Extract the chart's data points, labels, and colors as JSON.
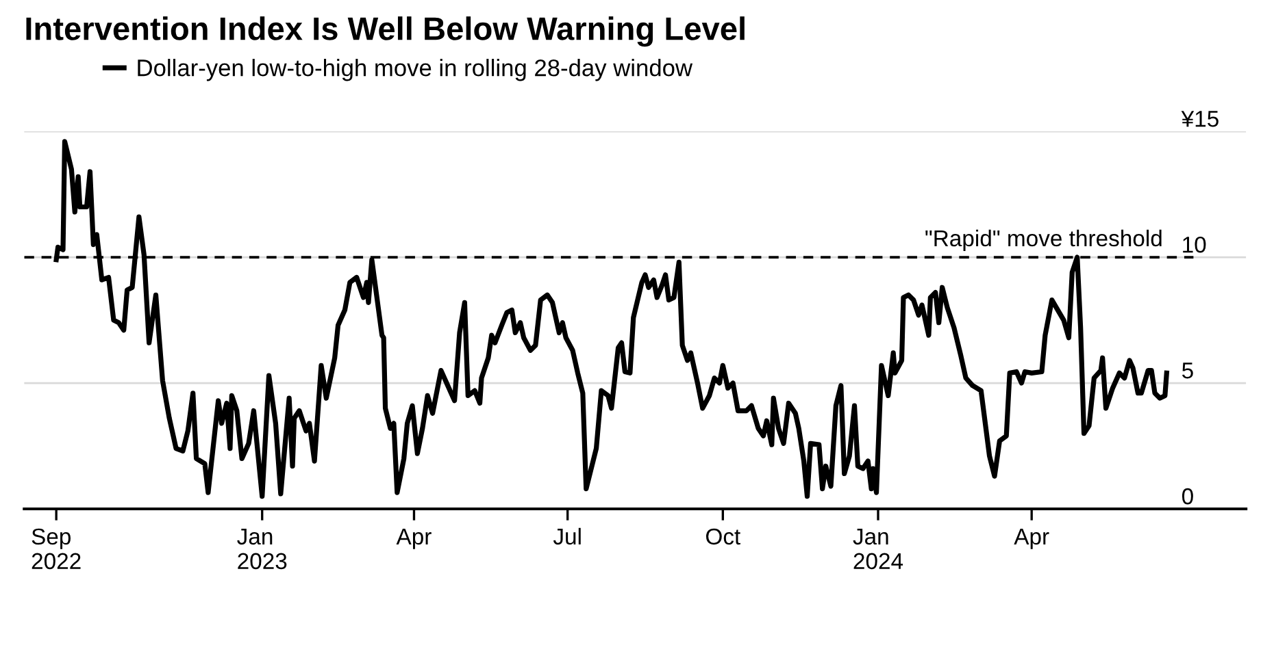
{
  "chart_data": {
    "type": "line",
    "title": "Intervention Index Is Well Below Warning Level",
    "series": [
      {
        "name": "Dollar-yen low-to-high move in rolling 28-day window",
        "color": "#000000",
        "x": [
          "2022-09-01",
          "2022-09-02",
          "2022-09-05",
          "2022-09-06",
          "2022-09-10",
          "2022-09-12",
          "2022-09-14",
          "2022-09-15",
          "2022-09-19",
          "2022-09-21",
          "2022-09-23",
          "2022-09-25",
          "2022-09-28",
          "2022-10-02",
          "2022-10-05",
          "2022-10-08",
          "2022-10-11",
          "2022-10-13",
          "2022-10-16",
          "2022-10-20",
          "2022-10-23",
          "2022-10-26",
          "2022-10-30",
          "2022-11-03",
          "2022-11-07",
          "2022-11-11",
          "2022-11-15",
          "2022-11-18",
          "2022-11-21",
          "2022-11-23",
          "2022-11-28",
          "2022-11-30",
          "2022-12-06",
          "2022-12-08",
          "2022-12-11",
          "2022-12-13",
          "2022-12-14",
          "2022-12-17",
          "2022-12-20",
          "2022-12-24",
          "2022-12-27",
          "2023-01-01",
          "2023-01-05",
          "2023-01-09",
          "2023-01-12",
          "2023-01-17",
          "2023-01-19",
          "2023-01-20",
          "2023-01-23",
          "2023-01-27",
          "2023-01-29",
          "2023-02-01",
          "2023-02-05",
          "2023-02-08",
          "2023-02-13",
          "2023-02-15",
          "2023-02-19",
          "2023-02-22",
          "2023-02-26",
          "2023-03-02",
          "2023-03-04",
          "2023-03-05",
          "2023-03-07",
          "2023-03-13",
          "2023-03-14",
          "2023-03-15",
          "2023-03-18",
          "2023-03-20",
          "2023-03-22",
          "2023-03-26",
          "2023-03-28",
          "2023-03-31",
          "2023-04-03",
          "2023-04-06",
          "2023-04-09",
          "2023-04-12",
          "2023-04-17",
          "2023-04-21",
          "2023-04-25",
          "2023-04-28",
          "2023-05-01",
          "2023-05-03",
          "2023-05-07",
          "2023-05-10",
          "2023-05-11",
          "2023-05-15",
          "2023-05-17",
          "2023-05-19",
          "2023-05-23",
          "2023-05-26",
          "2023-05-29",
          "2023-05-31",
          "2023-06-03",
          "2023-06-05",
          "2023-06-09",
          "2023-06-12",
          "2023-06-15",
          "2023-06-19",
          "2023-06-22",
          "2023-06-26",
          "2023-06-28",
          "2023-06-30",
          "2023-07-04",
          "2023-07-07",
          "2023-07-10",
          "2023-07-12",
          "2023-07-15",
          "2023-07-18",
          "2023-07-21",
          "2023-07-25",
          "2023-07-27",
          "2023-07-31",
          "2023-08-02",
          "2023-08-04",
          "2023-08-07",
          "2023-08-09",
          "2023-08-14",
          "2023-08-16",
          "2023-08-18",
          "2023-08-21",
          "2023-08-23",
          "2023-08-26",
          "2023-08-28",
          "2023-08-30",
          "2023-09-02",
          "2023-09-05",
          "2023-09-07",
          "2023-09-10",
          "2023-09-12",
          "2023-09-16",
          "2023-09-19",
          "2023-09-23",
          "2023-09-26",
          "2023-09-29",
          "2023-10-01",
          "2023-10-04",
          "2023-10-07",
          "2023-10-10",
          "2023-10-15",
          "2023-10-18",
          "2023-10-22",
          "2023-10-25",
          "2023-10-27",
          "2023-10-30",
          "2023-10-31",
          "2023-11-03",
          "2023-11-06",
          "2023-11-09",
          "2023-11-13",
          "2023-11-15",
          "2023-11-18",
          "2023-11-20",
          "2023-11-22",
          "2023-11-27",
          "2023-11-29",
          "2023-12-01",
          "2023-12-04",
          "2023-12-07",
          "2023-12-10",
          "2023-12-12",
          "2023-12-15",
          "2023-12-18",
          "2023-12-20",
          "2023-12-23",
          "2023-12-26",
          "2023-12-28",
          "2023-12-29",
          "2023-12-31",
          "2024-01-03",
          "2024-01-07",
          "2024-01-10",
          "2024-01-11",
          "2024-01-15",
          "2024-01-16",
          "2024-01-19",
          "2024-01-22",
          "2024-01-25",
          "2024-01-27",
          "2024-01-31",
          "2024-02-01",
          "2024-02-04",
          "2024-02-06",
          "2024-02-08",
          "2024-02-11",
          "2024-02-15",
          "2024-02-19",
          "2024-02-22",
          "2024-02-26",
          "2024-03-02",
          "2024-03-07",
          "2024-03-10",
          "2024-03-13",
          "2024-03-17",
          "2024-03-19",
          "2024-03-23",
          "2024-03-26",
          "2024-03-28",
          "2024-04-01",
          "2024-04-07",
          "2024-04-09",
          "2024-04-13",
          "2024-04-20",
          "2024-04-23",
          "2024-04-25",
          "2024-04-28",
          "2024-04-30",
          "2024-05-02",
          "2024-05-05",
          "2024-05-08",
          "2024-05-12",
          "2024-05-13",
          "2024-05-15",
          "2024-05-19",
          "2024-05-23",
          "2024-05-26",
          "2024-05-29",
          "2024-05-31",
          "2024-06-03",
          "2024-06-05",
          "2024-06-09",
          "2024-06-11",
          "2024-06-13",
          "2024-06-16",
          "2024-06-19",
          "2024-06-20"
        ],
        "values": [
          9.9,
          10.4,
          10.3,
          14.6,
          13.5,
          11.8,
          13.2,
          12.0,
          12.0,
          13.4,
          10.5,
          10.9,
          9.1,
          9.2,
          7.5,
          7.4,
          7.1,
          8.7,
          8.8,
          11.6,
          10.1,
          6.6,
          8.5,
          5.1,
          3.6,
          2.4,
          2.3,
          3.1,
          4.6,
          2.0,
          1.8,
          0.65,
          4.3,
          3.4,
          4.2,
          2.4,
          4.5,
          3.9,
          2.0,
          2.6,
          3.9,
          0.5,
          5.3,
          3.4,
          0.6,
          4.4,
          1.7,
          3.6,
          3.9,
          3.1,
          3.4,
          1.9,
          5.7,
          4.4,
          6.0,
          7.3,
          7.9,
          9.0,
          9.2,
          8.4,
          9.0,
          8.2,
          9.9,
          6.9,
          6.8,
          4.0,
          3.2,
          3.4,
          0.65,
          2.0,
          3.4,
          4.1,
          2.2,
          3.2,
          4.5,
          3.8,
          5.5,
          4.9,
          4.3,
          7.0,
          8.2,
          4.5,
          4.7,
          4.2,
          5.2,
          6.0,
          6.9,
          6.6,
          7.3,
          7.8,
          7.9,
          7.0,
          7.4,
          6.8,
          6.3,
          6.5,
          8.3,
          8.5,
          8.2,
          7.0,
          7.4,
          6.8,
          6.3,
          5.4,
          4.6,
          0.8,
          1.6,
          2.4,
          4.7,
          4.5,
          4.0,
          6.4,
          6.6,
          5.45,
          5.4,
          7.6,
          9.0,
          9.3,
          8.8,
          9.1,
          8.4,
          8.9,
          9.3,
          8.3,
          8.4,
          9.8,
          6.5,
          5.9,
          6.2,
          5.0,
          4.0,
          4.5,
          5.2,
          5.0,
          5.7,
          4.8,
          5.0,
          3.9,
          3.9,
          4.1,
          3.2,
          2.9,
          3.5,
          2.55,
          4.4,
          3.2,
          2.6,
          4.2,
          3.8,
          3.2,
          1.9,
          0.5,
          2.6,
          2.55,
          0.8,
          1.7,
          0.9,
          4.1,
          4.9,
          1.4,
          2.1,
          4.1,
          1.7,
          1.6,
          1.9,
          0.8,
          1.6,
          0.65,
          5.7,
          4.5,
          6.2,
          5.4,
          5.9,
          8.4,
          8.5,
          8.3,
          7.7,
          8.1,
          6.9,
          8.4,
          8.6,
          7.4,
          8.8,
          8.0,
          7.2,
          6.1,
          5.2,
          4.9,
          4.7,
          2.1,
          1.3,
          2.7,
          2.9,
          5.4,
          5.45,
          5.0,
          5.45,
          5.4,
          5.45,
          6.9,
          8.3,
          7.5,
          6.8,
          9.4,
          10.0,
          7.2,
          3.0,
          3.3,
          5.2,
          5.5,
          6.0,
          4.0,
          4.8,
          5.4,
          5.2,
          5.9,
          5.6,
          4.6,
          4.6,
          5.5,
          5.5,
          4.6,
          4.4,
          4.5,
          5.4
        ]
      }
    ],
    "xlim": [
      "2022-08-13",
      "2024-08-06"
    ],
    "xticks": [
      {
        "value": "2022-09-01",
        "label": "Sep\n2022"
      },
      {
        "value": "2023-01-01",
        "label": "Jan\n2023"
      },
      {
        "value": "2023-04-01",
        "label": "Apr"
      },
      {
        "value": "2023-07-01",
        "label": "Jul"
      },
      {
        "value": "2023-10-01",
        "label": "Oct"
      },
      {
        "value": "2024-01-01",
        "label": "Jan\n2024"
      },
      {
        "value": "2024-04-01",
        "label": "Apr"
      }
    ],
    "ylim": [
      0,
      15
    ],
    "yticks": [
      0,
      5,
      10,
      {
        "value": 15,
        "label": "¥15"
      }
    ],
    "grid": "y",
    "legend": "top left",
    "line_style": "solid",
    "marker": "none",
    "ref_lines": [
      {
        "axis": "y",
        "value": 10,
        "label": "\"Rapid\" move threshold",
        "color": "#000000",
        "line_style": "dashed"
      }
    ]
  }
}
